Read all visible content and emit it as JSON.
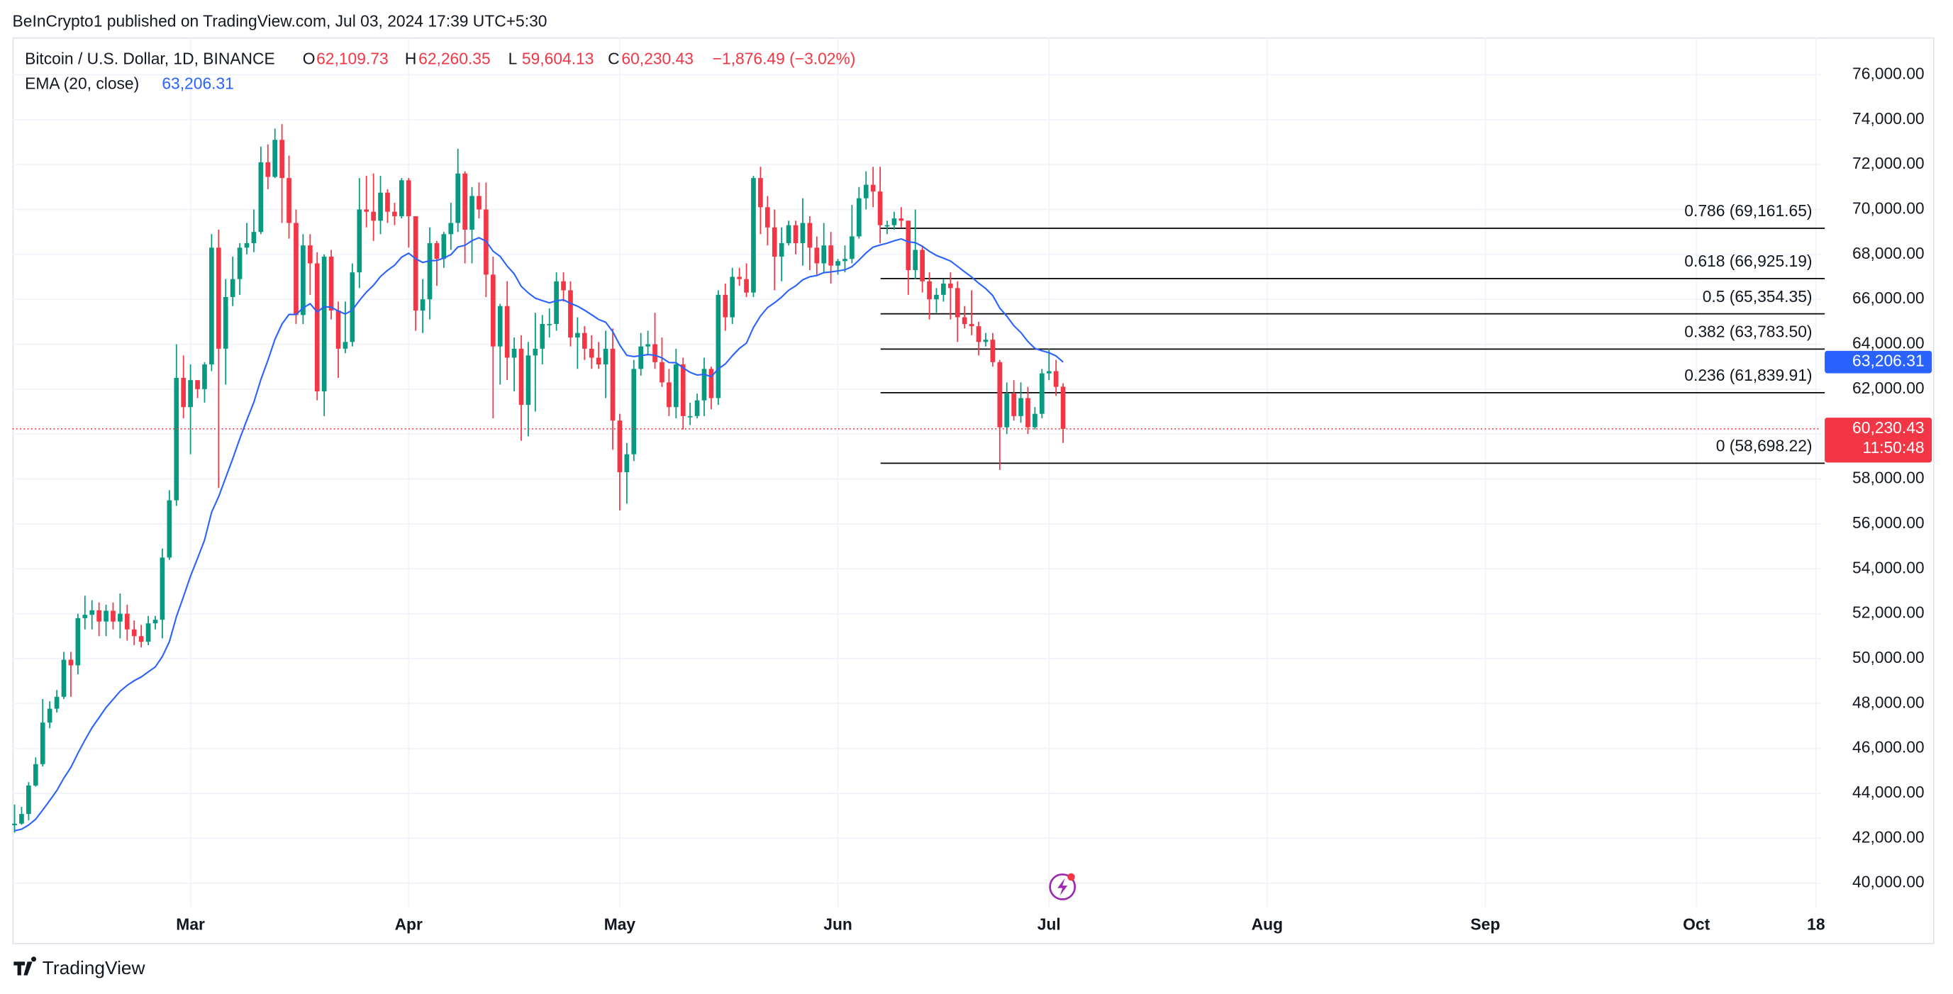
{
  "header": "BeInCrypto1 published on TradingView.com, Jul 03, 2024 17:39 UTC+5:30",
  "footer_brand": "TradingView",
  "chart_data": {
    "type": "candlestick",
    "title": "Bitcoin / U.S. Dollar, 1D, BINANCE",
    "ohlc_legend": [
      {
        "key": "O",
        "value": "62,109.73"
      },
      {
        "key": "H",
        "value": "62,260.35"
      },
      {
        "key": "L",
        "value": "59,604.13"
      },
      {
        "key": "C",
        "value": "60,230.43"
      }
    ],
    "change_label": "−1,876.49 (−3.02%)",
    "up_color": "#089981",
    "down_color": "#f23645",
    "x": [
      36,
      37,
      38,
      39,
      40,
      41,
      42,
      43,
      44,
      45,
      46,
      47,
      48,
      49,
      50,
      51,
      52,
      53,
      54,
      55,
      56,
      57,
      58,
      59,
      60,
      61,
      62,
      63,
      64,
      65,
      66,
      67,
      68,
      69,
      70,
      71,
      72,
      73,
      74,
      75,
      76,
      77,
      78,
      79,
      80,
      81,
      82,
      83,
      84,
      85,
      86,
      87,
      88,
      89,
      90,
      91,
      92,
      93,
      94,
      95,
      96,
      97,
      98,
      99,
      100,
      101,
      102,
      103,
      104,
      105,
      106,
      107,
      108,
      109,
      110,
      111,
      112,
      113,
      114,
      115,
      116,
      117,
      118,
      119,
      120,
      121,
      122,
      123,
      124,
      125,
      126,
      127,
      128,
      129,
      130,
      131,
      132,
      133,
      134,
      135,
      136,
      137,
      138,
      139,
      140,
      141,
      142,
      143,
      144,
      145,
      146,
      147,
      148,
      149,
      150,
      151,
      152,
      153,
      154,
      155,
      156,
      157,
      158,
      159,
      160,
      161,
      162,
      163,
      164,
      165,
      166,
      167,
      168,
      169,
      170,
      171,
      172,
      173,
      174,
      175,
      176,
      177,
      178,
      179,
      180,
      181,
      182,
      183,
      184,
      185
    ],
    "open": [
      42580,
      42650,
      43080,
      44350,
      45300,
      47150,
      47770,
      48300,
      49950,
      49700,
      51800,
      51950,
      52150,
      51650,
      52130,
      51650,
      52000,
      51300,
      51000,
      50750,
      51570,
      51730,
      54500,
      57050,
      62500,
      61200,
      62400,
      62000,
      63100,
      68300,
      63800,
      66100,
      66900,
      68300,
      68500,
      69000,
      72100,
      71450,
      73100,
      71400,
      69400,
      65300,
      68400,
      67600,
      61900,
      67900,
      65500,
      63800,
      64100,
      67200,
      70000,
      69900,
      69500,
      70750,
      69900,
      69700,
      71300,
      69700,
      65500,
      66000,
      68500,
      67800,
      68900,
      69400,
      71600,
      69100,
      70600,
      70000,
      67100,
      63900,
      65700,
      63400,
      63800,
      61300,
      63500,
      63800,
      64900,
      64900,
      66800,
      66400,
      64300,
      64500,
      63800,
      63400,
      63100,
      63800,
      60600,
      58300,
      59100,
      62900,
      63900,
      64000,
      63200,
      62300,
      61200,
      63100,
      60800,
      60800,
      61500,
      62900,
      61600,
      66200,
      65200,
      67000,
      66900,
      66300,
      71400,
      70100,
      69200,
      67900,
      68500,
      69300,
      68500,
      69400,
      68300,
      67600,
      68400,
      67500,
      67700,
      67800,
      68800,
      70500,
      71100,
      70800,
      69300,
      69300,
      69600,
      69500,
      67300,
      68200,
      66800,
      66000,
      66200,
      66700,
      66500,
      65200,
      64900,
      64800,
      64100,
      64200,
      63200,
      60300,
      61800,
      60800,
      61600,
      60300,
      60900,
      62700,
      62800,
      62109.73
    ],
    "high": [
      43500,
      43400,
      44500,
      45600,
      48200,
      48100,
      48600,
      50300,
      50300,
      52000,
      52800,
      52600,
      52500,
      52400,
      52500,
      52900,
      52400,
      51700,
      51500,
      51900,
      51900,
      54900,
      57500,
      64000,
      63500,
      63100,
      62400,
      63200,
      68900,
      69100,
      66900,
      67900,
      68500,
      69400,
      70000,
      72800,
      72900,
      73600,
      73800,
      72400,
      70000,
      68900,
      68900,
      68100,
      68000,
      68200,
      65900,
      65900,
      67600,
      71400,
      71500,
      71600,
      71500,
      70900,
      70300,
      71400,
      71400,
      69700,
      66900,
      69200,
      68600,
      69000,
      70300,
      72700,
      71700,
      71000,
      71200,
      71200,
      67900,
      65800,
      66800,
      64300,
      64400,
      64100,
      65400,
      65300,
      65600,
      67200,
      67200,
      66800,
      65200,
      64800,
      64400,
      64100,
      64600,
      64700,
      60900,
      59600,
      63300,
      64500,
      64600,
      65400,
      64300,
      62900,
      63800,
      63400,
      61400,
      61800,
      63400,
      63000,
      66400,
      66700,
      67400,
      67400,
      67600,
      71500,
      71900,
      70600,
      70000,
      69200,
      69500,
      69500,
      70500,
      69700,
      68800,
      69400,
      69000,
      67800,
      68400,
      70200,
      71000,
      71700,
      71900,
      71900,
      69500,
      69900,
      70100,
      69500,
      70000,
      68400,
      67200,
      66500,
      66900,
      67200,
      66800,
      65700,
      66400,
      65000,
      64500,
      64500,
      63300,
      62300,
      62400,
      62300,
      62100,
      61200,
      62900,
      63800,
      63300,
      62260.35
    ],
    "low": [
      42250,
      42600,
      42800,
      44300,
      45200,
      46900,
      47600,
      48200,
      48300,
      49300,
      51300,
      51300,
      51000,
      51000,
      51300,
      50900,
      50800,
      50600,
      50500,
      50600,
      51300,
      50900,
      54400,
      56800,
      60700,
      59100,
      61600,
      61400,
      62800,
      57600,
      62200,
      65700,
      66200,
      68000,
      68100,
      68900,
      70900,
      71400,
      69400,
      68700,
      64900,
      64900,
      66200,
      61500,
      60800,
      65100,
      62500,
      63600,
      63900,
      66500,
      69200,
      68600,
      68900,
      69400,
      69300,
      69600,
      68300,
      64600,
      64500,
      65100,
      66600,
      67400,
      68200,
      69000,
      67600,
      67600,
      69600,
      66100,
      60700,
      62200,
      62400,
      61900,
      59700,
      59900,
      61000,
      63100,
      64300,
      64600,
      65900,
      63900,
      62900,
      63300,
      62900,
      62900,
      61600,
      59300,
      56600,
      56900,
      58800,
      62600,
      63500,
      62900,
      62100,
      60800,
      60700,
      60200,
      60400,
      60700,
      60800,
      61100,
      61300,
      64600,
      64900,
      66600,
      66100,
      66100,
      68900,
      68400,
      66400,
      66800,
      68400,
      68000,
      67500,
      67300,
      67100,
      67200,
      66700,
      67100,
      67200,
      67600,
      68700,
      70000,
      70100,
      68500,
      68900,
      69100,
      69200,
      66200,
      66900,
      66300,
      65100,
      65400,
      65900,
      65100,
      64100,
      64700,
      64400,
      63500,
      63900,
      63000,
      58400,
      60000,
      60600,
      60500,
      60000,
      60200,
      60700,
      62400,
      61700,
      59604.13
    ],
    "close": [
      42650,
      43080,
      44350,
      45300,
      47150,
      47770,
      48300,
      49950,
      49700,
      51800,
      51950,
      52150,
      51650,
      52130,
      51650,
      52000,
      51300,
      51000,
      50750,
      51570,
      51730,
      54500,
      57050,
      62500,
      61200,
      62400,
      62000,
      63100,
      68300,
      63800,
      66100,
      66900,
      68300,
      68500,
      69000,
      72100,
      71450,
      73100,
      71400,
      69400,
      65300,
      68400,
      67600,
      61900,
      67900,
      65500,
      63800,
      64100,
      67200,
      70000,
      69900,
      69500,
      70750,
      69900,
      69700,
      71300,
      69700,
      65500,
      66000,
      68500,
      67800,
      68900,
      69400,
      71600,
      69100,
      70600,
      70000,
      67100,
      63900,
      65700,
      63400,
      63800,
      61300,
      63500,
      63800,
      64900,
      64900,
      66800,
      66400,
      64300,
      64500,
      63800,
      63400,
      63100,
      63800,
      60600,
      58300,
      59100,
      62900,
      63900,
      64000,
      63200,
      62300,
      61200,
      63100,
      60800,
      60800,
      61500,
      62900,
      61600,
      66200,
      65200,
      67000,
      66900,
      66300,
      71400,
      70100,
      69200,
      67900,
      68500,
      69300,
      68500,
      69400,
      68300,
      67600,
      68400,
      67500,
      67700,
      67800,
      68800,
      70500,
      71100,
      70800,
      69300,
      69300,
      69600,
      69500,
      67300,
      68200,
      66800,
      66000,
      66200,
      66700,
      66500,
      65200,
      64900,
      64800,
      64100,
      64200,
      63200,
      60300,
      61800,
      60800,
      61600,
      60300,
      60900,
      62700,
      62800,
      62100,
      60230.43
    ],
    "series": [
      {
        "name": "EMA (20, close)",
        "color": "#2962ff",
        "value_label": "63,206.31",
        "values": [
          42333,
          42404,
          42589,
          42847,
          43256,
          43685,
          44123,
          44677,
          45154,
          45785,
          46371,
          46920,
          47369,
          47821,
          48185,
          48547,
          48809,
          49017,
          49182,
          49409,
          49629,
          50092,
          50753,
          51869,
          52755,
          53671,
          54462,
          55283,
          56520,
          57212,
          58056,
          58896,
          59789,
          60617,
          61413,
          62428,
          63285,
          64217,
          64899,
          65327,
          65324,
          65616,
          65804,
          65433,
          65667,
          65651,
          65475,
          65344,
          65520,
          65946,
          66322,
          66624,
          67016,
          67290,
          67519,
          67878,
          68051,
          67809,
          67637,
          67719,
          67727,
          67838,
          67986,
          68329,
          68402,
          68611,
          68743,
          68587,
          68142,
          67910,
          67482,
          67132,
          66578,
          66286,
          66050,
          65941,
          65842,
          65933,
          65977,
          65818,
          65693,
          65513,
          65312,
          65102,
          64978,
          64562,
          63967,
          63505,
          63448,
          63491,
          63539,
          63507,
          63392,
          63184,
          63176,
          62950,
          62746,
          62628,
          62654,
          62554,
          62900,
          63119,
          63488,
          63812,
          64048,
          64746,
          65255,
          65630,
          65846,
          66098,
          66402,
          66601,
          66867,
          67003,
          67060,
          67187,
          67217,
          67263,
          67314,
          67455,
          67744,
          68063,
          68323,
          68416,
          68500,
          68605,
          68690,
          68558,
          68524,
          68360,
          68136,
          67952,
          67833,
          67706,
          67468,
          67224,
          66994,
          66719,
          66480,
          66168,
          65611,
          65249,
          64826,
          64520,
          64119,
          63813,
          63707,
          63621,
          63477,
          63206.31
        ]
      }
    ],
    "last_price": {
      "value": 60230.43,
      "label": "60,230.43",
      "countdown": "11:50:48"
    },
    "fib_levels": [
      {
        "label": "0.786 (69,161.65)",
        "value": 69161.65
      },
      {
        "label": "0.618 (66,925.19)",
        "value": 66925.19
      },
      {
        "label": "0.5 (65,354.35)",
        "value": 65354.35
      },
      {
        "label": "0.382 (63,783.50)",
        "value": 63783.5
      },
      {
        "label": "0.236 (61,839.91)",
        "value": 61839.91
      },
      {
        "label": "0 (58,698.22)",
        "value": 58698.22
      }
    ],
    "xlim": [
      35.7,
      292.7
    ],
    "xticks": [
      {
        "value": 61,
        "label": "Mar"
      },
      {
        "value": 92,
        "label": "Apr"
      },
      {
        "value": 122,
        "label": "May"
      },
      {
        "value": 153,
        "label": "Jun"
      },
      {
        "value": 183,
        "label": "Jul"
      },
      {
        "value": 214,
        "label": "Aug"
      },
      {
        "value": 245,
        "label": "Sep"
      },
      {
        "value": 275,
        "label": "Oct"
      },
      {
        "value": 292,
        "label": "18"
      }
    ],
    "ylim": [
      38947,
      77664
    ],
    "yticks": [
      {
        "value": 40000,
        "label": "40,000.00"
      },
      {
        "value": 42000,
        "label": "42,000.00"
      },
      {
        "value": 44000,
        "label": "44,000.00"
      },
      {
        "value": 46000,
        "label": "46,000.00"
      },
      {
        "value": 48000,
        "label": "48,000.00"
      },
      {
        "value": 50000,
        "label": "50,000.00"
      },
      {
        "value": 52000,
        "label": "52,000.00"
      },
      {
        "value": 54000,
        "label": "54,000.00"
      },
      {
        "value": 56000,
        "label": "56,000.00"
      },
      {
        "value": 58000,
        "label": "58,000.00"
      },
      {
        "value": 60000,
        "label": "60,000.00"
      },
      {
        "value": 62000,
        "label": "62,000.00"
      },
      {
        "value": 64000,
        "label": "64,000.00"
      },
      {
        "value": 66000,
        "label": "66,000.00"
      },
      {
        "value": 68000,
        "label": "68,000.00"
      },
      {
        "value": 70000,
        "label": "70,000.00"
      },
      {
        "value": 72000,
        "label": "72,000.00"
      },
      {
        "value": 74000,
        "label": "74,000.00"
      },
      {
        "value": 76000,
        "label": "76,000.00"
      }
    ],
    "grid": true
  }
}
